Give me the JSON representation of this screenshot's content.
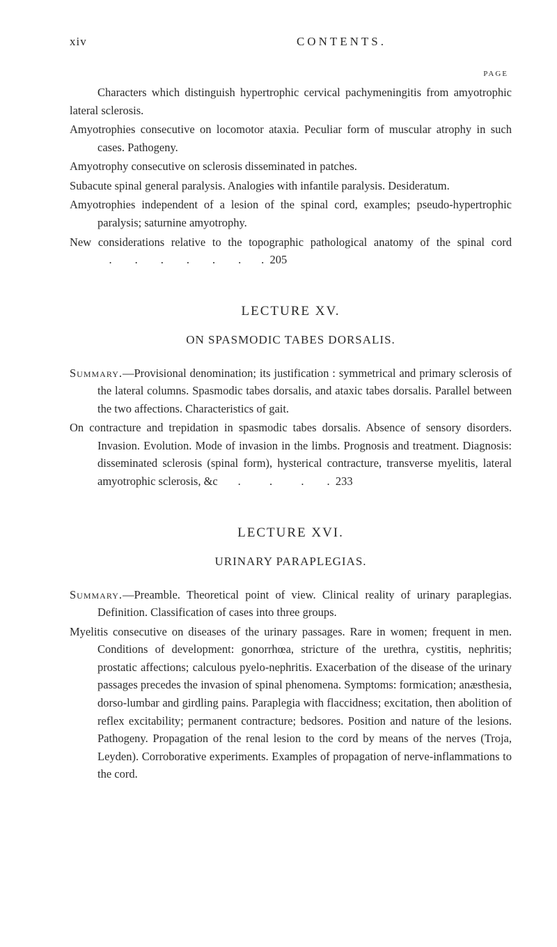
{
  "header": {
    "page_num": "xiv",
    "title": "CONTENTS."
  },
  "page_label": "PAGE",
  "top_section": {
    "p1": "Characters which distinguish hypertrophic cervical pachymeningitis from amyotrophic lateral sclerosis.",
    "p2": "Amyotrophies consecutive on locomotor ataxia. Peculiar form of muscular atrophy in such cases. Pathogeny.",
    "p3": "Amyotrophy consecutive on sclerosis disseminated in patches.",
    "p4": "Subacute spinal general paralysis. Analogies with infantile paralysis. Desideratum.",
    "p5": "Amyotrophies independent of a lesion of the spinal cord, examples; pseudo-hypertrophic paralysis; saturnine amyotrophy.",
    "p6_text": "New considerations relative to the topographic pathological anatomy of the spinal cord",
    "p6_num": "205"
  },
  "lecture_xv": {
    "title": "LECTURE XV.",
    "subtitle": "ON SPASMODIC TABES DORSALIS.",
    "summary_label": "Summary.",
    "p1": "—Provisional denomination; its justification : symmetrical and primary sclerosis of the lateral columns. Spasmodic tabes dorsalis, and ataxic tabes dorsalis. Parallel between the two affections. Characteristics of gait.",
    "p2_text": "On contracture and trepidation in spasmodic tabes dorsalis. Absence of sensory disorders. Invasion. Evolution. Mode of invasion in the limbs. Prognosis and treatment. Diagnosis: disseminated sclerosis (spinal form), hysterical contracture, transverse myelitis, lateral amyotrophic sclerosis, &c",
    "p2_num": "233"
  },
  "lecture_xvi": {
    "title": "LECTURE XVI.",
    "subtitle": "URINARY PARAPLEGIAS.",
    "summary_label": "Summary.",
    "p1": "—Preamble. Theoretical point of view. Clinical reality of urinary paraplegias. Definition. Classification of cases into three groups.",
    "p2": "Myelitis consecutive on diseases of the urinary passages. Rare in women; frequent in men. Conditions of development: gonorrhœa, stricture of the urethra, cystitis, nephritis; prostatic affections; calculous pyelo-nephritis. Exacerbation of the disease of the urinary passages precedes the invasion of spinal phenomena. Symptoms: formication; anæsthesia, dorso-lumbar and girdling pains. Paraplegia with flaccidness; excitation, then abolition of reflex excitability; permanent contracture; bedsores. Position and nature of the lesions. Pathogeny. Propagation of the renal lesion to the cord by means of the nerves (Troja, Leyden). Corroborative experiments. Examples of propagation of nerve-inflammations to the cord."
  },
  "colors": {
    "background": "#ffffff",
    "text": "#2a2a2a"
  }
}
